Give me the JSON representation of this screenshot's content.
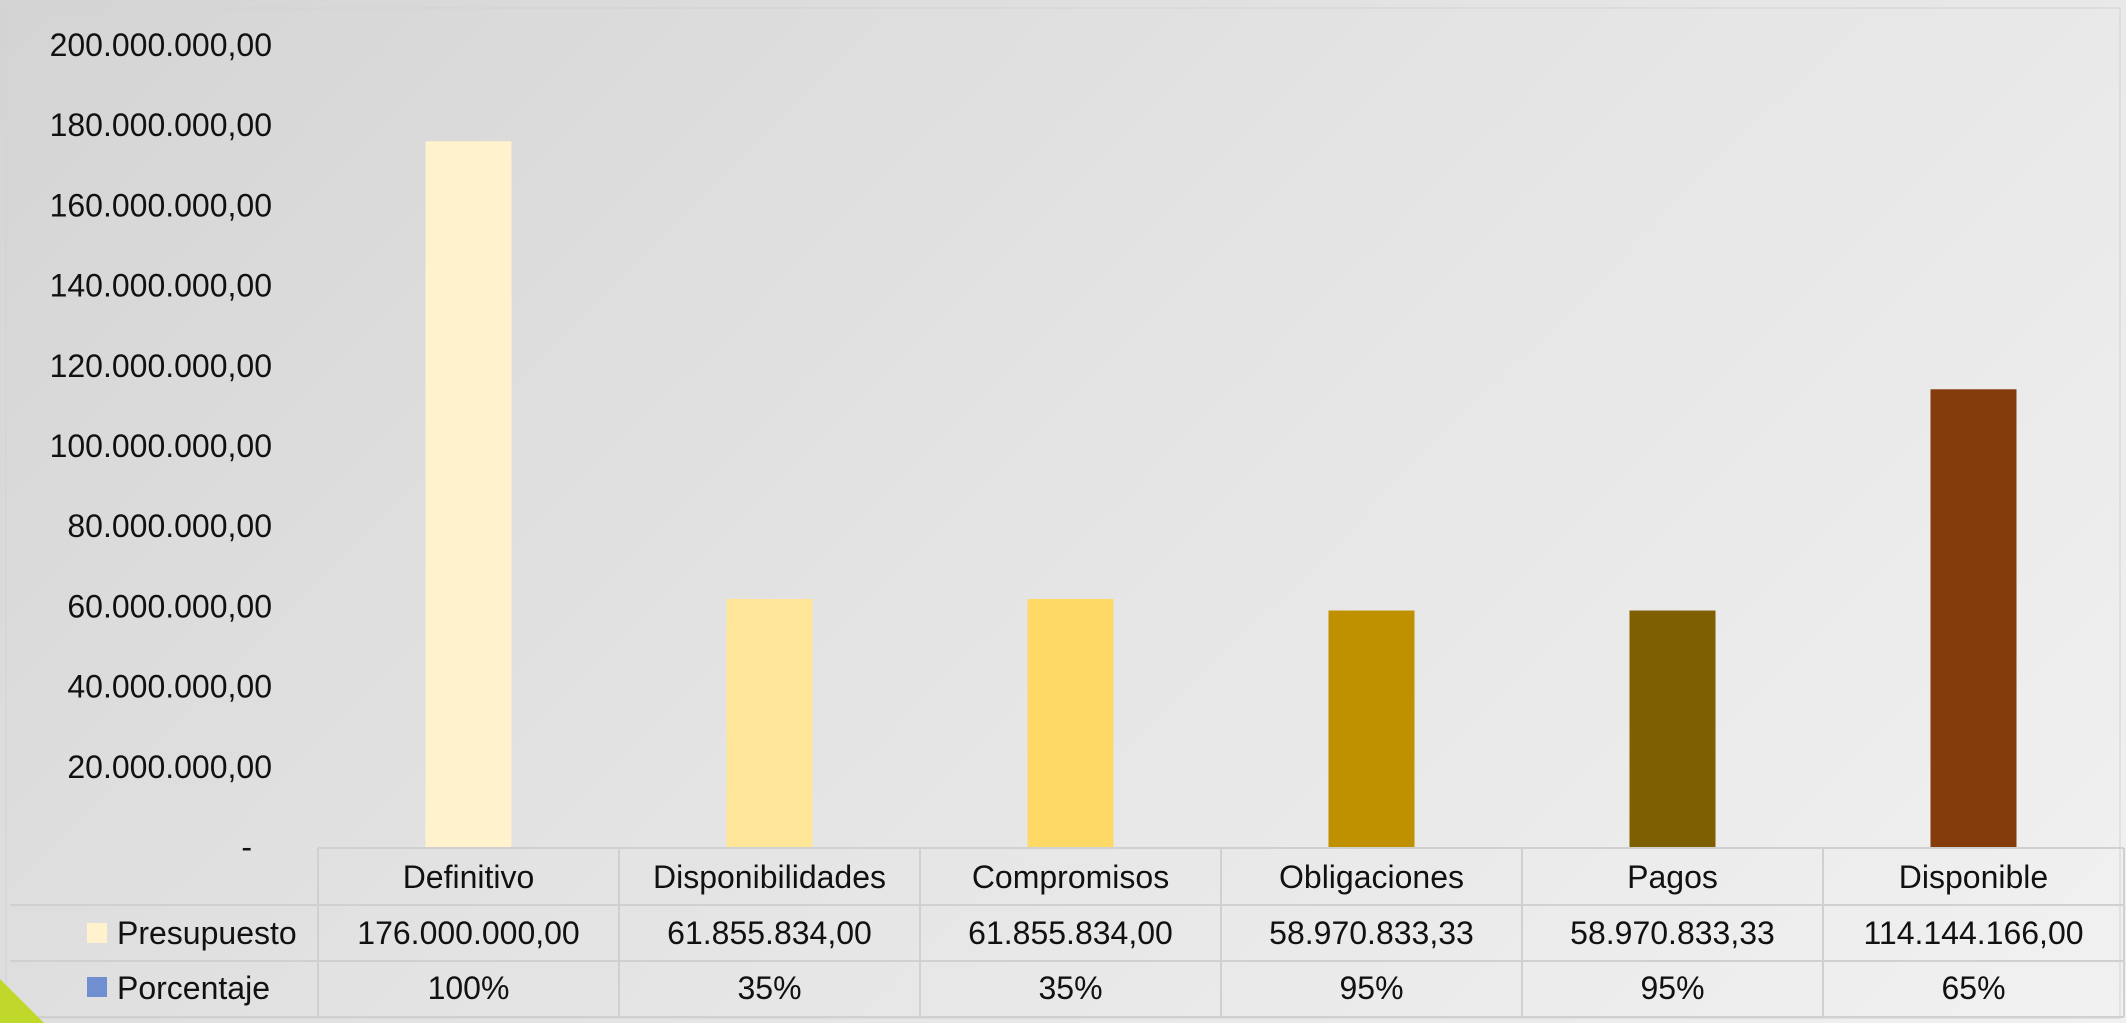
{
  "chart_data": {
    "type": "bar",
    "categories": [
      "Definitivo",
      "Disponibilidades",
      "Compromisos",
      "Obligaciones",
      "Pagos",
      "Disponible"
    ],
    "values": [
      176000000.0,
      61855834.0,
      61855834.0,
      58970833.33,
      58970833.33,
      114144166.0
    ],
    "bar_colors": [
      "#FFF2CC",
      "#FFE699",
      "#FFD966",
      "#BF9000",
      "#7F6000",
      "#843C0C"
    ],
    "ylim": [
      0,
      200000000
    ],
    "y_tick_labels": [
      "-",
      "20.000.000,00",
      "40.000.000,00",
      "60.000.000,00",
      "80.000.000,00",
      "100.000.000,00",
      "120.000.000,00",
      "140.000.000,00",
      "160.000.000,00",
      "180.000.000,00",
      "200.000.000,00"
    ],
    "grid": false,
    "legend_position": "bottom-table",
    "table": {
      "rows": [
        {
          "name": "Presupuesto",
          "key_color": "#FFF2CC",
          "cells": [
            "176.000.000,00",
            "61.855.834,00",
            "61.855.834,00",
            "58.970.833,33",
            "58.970.833,33",
            "114.144.166,00"
          ]
        },
        {
          "name": "Porcentaje",
          "key_color": "#6F8FD1",
          "cells": [
            "100%",
            "35%",
            "35%",
            "95%",
            "95%",
            "65%"
          ]
        }
      ]
    }
  },
  "decor": {
    "corner_accent_color": "#BFD82A"
  }
}
